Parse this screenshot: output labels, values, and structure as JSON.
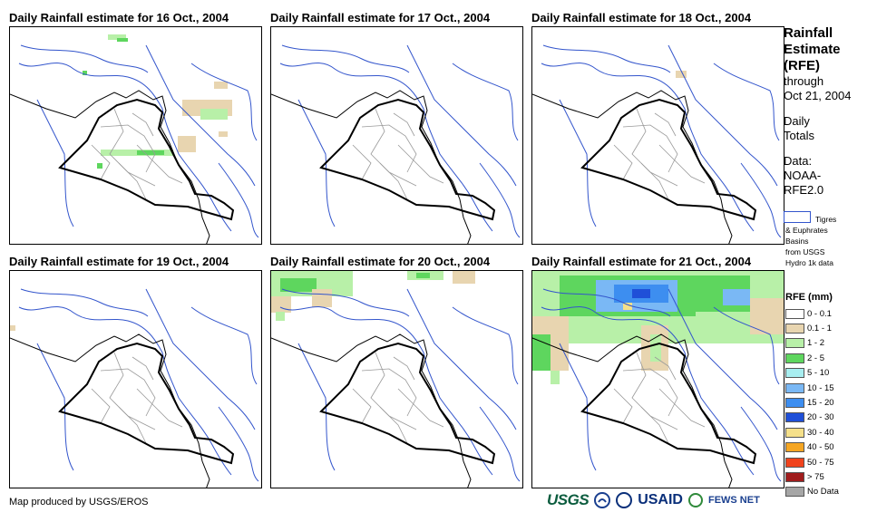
{
  "panels": [
    {
      "title": "Daily Rainfall estimate for 16 Oct., 2004"
    },
    {
      "title": "Daily Rainfall estimate for 17 Oct., 2004"
    },
    {
      "title": "Daily Rainfall estimate for 18 Oct., 2004"
    },
    {
      "title": "Daily Rainfall estimate for 19 Oct., 2004"
    },
    {
      "title": "Daily Rainfall estimate for 20 Oct., 2004"
    },
    {
      "title": "Daily Rainfall estimate for 21 Oct., 2004"
    }
  ],
  "side": {
    "title_lines": [
      "Rainfall",
      "Estimate",
      "(RFE)"
    ],
    "through": "through",
    "date": "Oct 21, 2004",
    "totals_1": "Daily",
    "totals_2": "Totals",
    "data_1": "Data:",
    "data_2": "NOAA-",
    "data_3": "RFE2.0"
  },
  "basin_legend": {
    "line1": "Tigres",
    "line2": "& Euphrates",
    "line3": "Basins",
    "line4": "from USGS",
    "line5": "Hydro 1k data"
  },
  "rfe_legend": {
    "title": "RFE (mm)",
    "classes": [
      {
        "label": "0 - 0.1",
        "color": "#ffffff"
      },
      {
        "label": "0.1 - 1",
        "color": "#e8d5b0"
      },
      {
        "label": "1 - 2",
        "color": "#b8f0a8"
      },
      {
        "label": "2 - 5",
        "color": "#5ed65e"
      },
      {
        "label": "5 - 10",
        "color": "#a8eef0"
      },
      {
        "label": "10 - 15",
        "color": "#7ab8f5"
      },
      {
        "label": "15 - 20",
        "color": "#3d8ef0"
      },
      {
        "label": "20 - 30",
        "color": "#1f4fd8"
      },
      {
        "label": "30 - 40",
        "color": "#f5e08a"
      },
      {
        "label": "40 - 50",
        "color": "#f5a623"
      },
      {
        "label": "50 - 75",
        "color": "#f0431c"
      },
      {
        "label": "> 75",
        "color": "#a01c1c"
      },
      {
        "label": "No Data",
        "color": "#a6a6a6"
      }
    ]
  },
  "footer": {
    "credit": "Map produced by USGS/EROS",
    "logo_usgs": "USGS",
    "logo_usaid": "USAID",
    "logo_fews": "FEWS NET"
  }
}
